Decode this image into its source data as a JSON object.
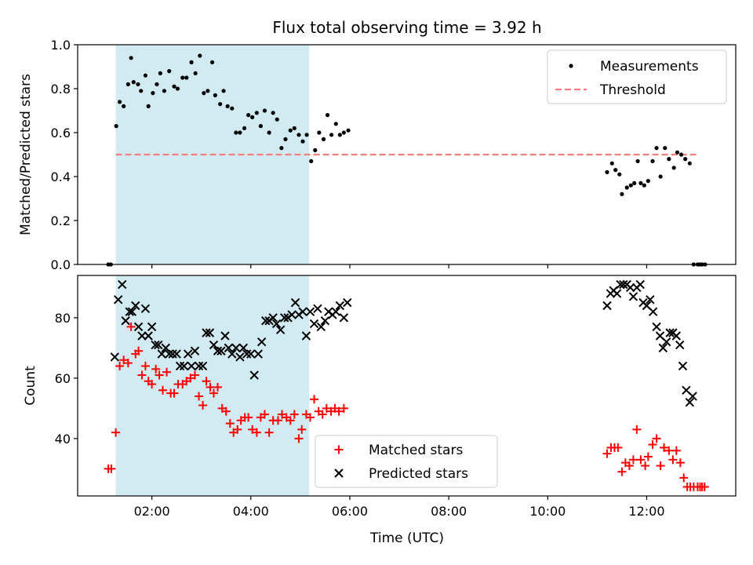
{
  "title": "Flux total observing time = 3.92 h",
  "colors": {
    "span": "#add8e6",
    "measurement": "#000000",
    "threshold": "#f08080",
    "matched": "#ff0000",
    "predicted": "#000000"
  },
  "chart_data": [
    {
      "type": "scatter",
      "ylabel": "Matched/Predicted stars",
      "xlabel": "",
      "xlim_hours": [
        0.5,
        13.8
      ],
      "ylim": [
        0.0,
        1.0
      ],
      "yticks": [
        "0.0",
        "0.2",
        "0.4",
        "0.6",
        "0.8",
        "1.0"
      ],
      "highlight_span_hours": [
        1.27,
        5.18
      ],
      "threshold": 0.5,
      "threshold_range_hours": [
        1.27,
        13.0
      ],
      "legend": {
        "placement": "upper right",
        "entries": [
          "Measurements",
          "Threshold"
        ]
      },
      "series": [
        {
          "name": "Measurements",
          "x_hours": [
            1.12,
            1.17,
            1.28,
            1.35,
            1.43,
            1.52,
            1.58,
            1.63,
            1.72,
            1.78,
            1.87,
            1.93,
            2.02,
            2.1,
            2.17,
            2.25,
            2.35,
            2.45,
            2.52,
            2.62,
            2.7,
            2.8,
            2.88,
            2.97,
            3.05,
            3.13,
            3.22,
            3.28,
            3.38,
            3.45,
            3.53,
            3.62,
            3.7,
            3.78,
            3.87,
            3.95,
            4.03,
            4.12,
            4.2,
            4.28,
            4.37,
            4.45,
            4.53,
            4.62,
            4.7,
            4.8,
            4.88,
            4.97,
            5.05,
            5.13,
            5.22,
            5.3,
            5.38,
            5.47,
            5.55,
            5.63,
            5.72,
            5.8,
            5.88,
            5.97,
            11.2,
            11.3,
            11.37,
            11.45,
            11.5,
            11.6,
            11.68,
            11.75,
            11.82,
            11.88,
            11.95,
            12.03,
            12.12,
            12.2,
            12.28,
            12.37,
            12.45,
            12.55,
            12.62,
            12.7,
            12.78,
            12.87,
            12.95,
            13.03,
            13.08,
            13.12,
            13.18
          ],
          "y": [
            0.0,
            0.0,
            0.63,
            0.74,
            0.72,
            0.82,
            0.94,
            0.83,
            0.82,
            0.79,
            0.86,
            0.72,
            0.78,
            0.82,
            0.87,
            0.79,
            0.88,
            0.81,
            0.8,
            0.85,
            0.85,
            0.92,
            0.87,
            0.95,
            0.78,
            0.79,
            0.92,
            0.77,
            0.73,
            0.79,
            0.72,
            0.71,
            0.6,
            0.6,
            0.62,
            0.68,
            0.67,
            0.69,
            0.63,
            0.7,
            0.6,
            0.69,
            0.66,
            0.53,
            0.57,
            0.61,
            0.62,
            0.59,
            0.56,
            0.59,
            0.47,
            0.52,
            0.6,
            0.57,
            0.68,
            0.59,
            0.64,
            0.59,
            0.6,
            0.61,
            0.42,
            0.46,
            0.43,
            0.41,
            0.32,
            0.35,
            0.36,
            0.37,
            0.47,
            0.37,
            0.36,
            0.38,
            0.47,
            0.53,
            0.4,
            0.53,
            0.48,
            0.44,
            0.51,
            0.5,
            0.48,
            0.46,
            0.0,
            0.0,
            0.0,
            0.0,
            0.0
          ]
        }
      ]
    },
    {
      "type": "scatter",
      "ylabel": "Count",
      "xlabel": "Time (UTC)",
      "xlim_hours": [
        0.5,
        13.8
      ],
      "ylim": [
        21,
        94
      ],
      "yticks": [
        "40",
        "60",
        "80"
      ],
      "ytick_values": [
        40,
        60,
        80
      ],
      "xticks": [
        "02:00",
        "04:00",
        "06:00",
        "08:00",
        "10:00",
        "12:00"
      ],
      "xtick_hours": [
        2,
        4,
        6,
        8,
        10,
        12
      ],
      "highlight_span_hours": [
        1.27,
        5.18
      ],
      "legend": {
        "placement": "lower center",
        "entries": [
          "Matched stars",
          "Predicted stars"
        ]
      },
      "series": [
        {
          "name": "Matched stars",
          "marker": "+",
          "x_hours": [
            1.12,
            1.18,
            1.27,
            1.35,
            1.43,
            1.52,
            1.58,
            1.67,
            1.73,
            1.8,
            1.87,
            1.93,
            2.0,
            2.08,
            2.15,
            2.22,
            2.3,
            2.38,
            2.45,
            2.53,
            2.62,
            2.7,
            2.78,
            2.87,
            2.95,
            3.03,
            3.1,
            3.18,
            3.25,
            3.33,
            3.42,
            3.5,
            3.58,
            3.65,
            3.73,
            3.8,
            3.88,
            3.95,
            4.03,
            4.12,
            4.2,
            4.28,
            4.37,
            4.45,
            4.55,
            4.63,
            4.72,
            4.8,
            4.88,
            4.97,
            5.03,
            5.12,
            5.2,
            5.28,
            5.37,
            5.45,
            5.53,
            5.62,
            5.7,
            5.78,
            5.88,
            11.2,
            11.28,
            11.35,
            11.42,
            11.5,
            11.57,
            11.65,
            11.73,
            11.8,
            11.88,
            11.97,
            12.03,
            12.12,
            12.2,
            12.28,
            12.35,
            12.45,
            12.53,
            12.6,
            12.68,
            12.75,
            12.82,
            12.88,
            12.95,
            13.03,
            13.08,
            13.12,
            13.17
          ],
          "y": [
            30,
            30,
            42,
            64,
            66,
            65,
            77,
            68,
            69,
            61,
            64,
            59,
            58,
            63,
            61,
            56,
            62,
            55,
            55,
            58,
            58,
            59,
            60,
            61,
            54,
            51,
            59,
            57,
            55,
            57,
            50,
            49,
            45,
            42,
            43,
            46,
            47,
            47,
            43,
            42,
            47,
            48,
            42,
            46,
            46,
            48,
            47,
            46,
            48,
            40,
            43,
            48,
            47,
            53,
            49,
            48,
            50,
            49,
            50,
            49,
            50,
            35,
            37,
            37,
            37,
            29,
            32,
            31,
            33,
            43,
            33,
            31,
            34,
            38,
            40,
            31,
            37,
            36,
            33,
            36,
            32,
            27,
            24,
            24,
            24,
            24,
            24,
            24,
            24
          ]
        },
        {
          "name": "Predicted stars",
          "marker": "x",
          "x_hours": [
            1.25,
            1.32,
            1.4,
            1.47,
            1.55,
            1.6,
            1.67,
            1.73,
            1.8,
            1.87,
            1.93,
            2.0,
            2.07,
            2.13,
            2.2,
            2.28,
            2.35,
            2.42,
            2.5,
            2.57,
            2.65,
            2.73,
            2.8,
            2.87,
            2.95,
            3.03,
            3.1,
            3.17,
            3.25,
            3.33,
            3.4,
            3.48,
            3.55,
            3.62,
            3.7,
            3.78,
            3.85,
            3.92,
            4.0,
            4.07,
            4.15,
            4.22,
            4.3,
            4.37,
            4.45,
            4.52,
            4.6,
            4.68,
            4.75,
            4.83,
            4.9,
            4.97,
            5.05,
            5.12,
            5.2,
            5.28,
            5.35,
            5.42,
            5.5,
            5.57,
            5.65,
            5.72,
            5.8,
            5.88,
            5.95,
            11.2,
            11.27,
            11.33,
            11.4,
            11.47,
            11.53,
            11.6,
            11.67,
            11.73,
            11.8,
            11.87,
            11.93,
            12.0,
            12.07,
            12.13,
            12.2,
            12.27,
            12.33,
            12.4,
            12.47,
            12.53,
            12.6,
            12.67,
            12.73,
            12.8,
            12.87,
            12.93
          ],
          "y": [
            67,
            86,
            91,
            79,
            82,
            82,
            84,
            77,
            74,
            83,
            74,
            77,
            71,
            71,
            68,
            70,
            68,
            68,
            68,
            64,
            64,
            68,
            64,
            69,
            64,
            64,
            75,
            75,
            71,
            69,
            69,
            74,
            70,
            68,
            70,
            67,
            70,
            68,
            68,
            61,
            68,
            72,
            79,
            79,
            80,
            78,
            76,
            80,
            80,
            81,
            85,
            81,
            82,
            74,
            82,
            78,
            83,
            77,
            79,
            82,
            81,
            82,
            84,
            80,
            85,
            84,
            88,
            89,
            88,
            91,
            91,
            91,
            90,
            87,
            90,
            91,
            85,
            84,
            86,
            82,
            77,
            74,
            70,
            72,
            75,
            75,
            74,
            71,
            64,
            56,
            52,
            54
          ]
        }
      ]
    }
  ]
}
